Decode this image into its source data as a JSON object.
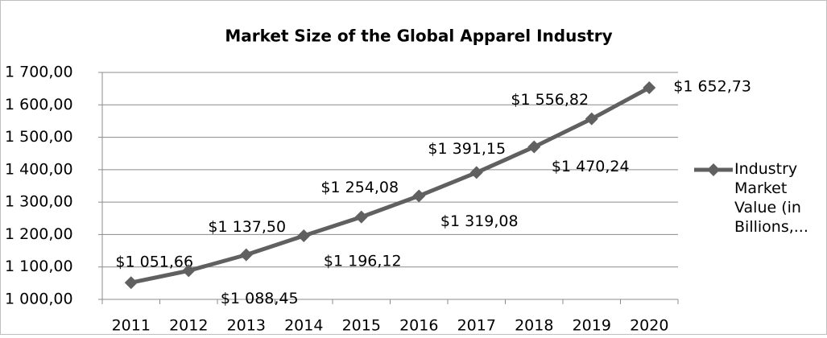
{
  "chart_data": {
    "type": "line",
    "title": "Market Size of the Global Apparel Industry",
    "categories": [
      "2011",
      "2012",
      "2013",
      "2014",
      "2015",
      "2016",
      "2017",
      "2018",
      "2019",
      "2020"
    ],
    "series": [
      {
        "name": "Industry Market Value (in Billions,...",
        "color": "#606060",
        "values": [
          1051.66,
          1088.45,
          1137.5,
          1196.12,
          1254.08,
          1319.08,
          1391.15,
          1470.24,
          1556.82,
          1652.73
        ],
        "value_labels": [
          "$1 051,66",
          "$1 088,45",
          "$1 137,50",
          "$1 196,12",
          "$1 254,08",
          "$1 319,08",
          "$1 391,15",
          "$1 470,24",
          "$1 556,82",
          "$1 652,73"
        ]
      }
    ],
    "ylim": [
      1000,
      1700
    ],
    "yticks": [
      {
        "value": 1000,
        "label": "1 000,00"
      },
      {
        "value": 1100,
        "label": "1 100,00"
      },
      {
        "value": 1200,
        "label": "1 200,00"
      },
      {
        "value": 1300,
        "label": "1 300,00"
      },
      {
        "value": 1400,
        "label": "1 400,00"
      },
      {
        "value": 1500,
        "label": "1 500,00"
      },
      {
        "value": 1600,
        "label": "1 600,00"
      },
      {
        "value": 1700,
        "label": "1 700,00"
      }
    ],
    "grid": true,
    "legend": "right"
  }
}
